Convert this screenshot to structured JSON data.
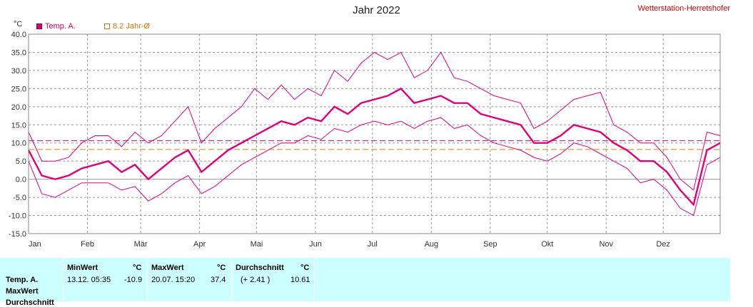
{
  "header": {
    "title": "Jahr 2022",
    "station": "Wetterstation-Herretshofer",
    "unit": "°C"
  },
  "legend": [
    {
      "label": "Temp. A.",
      "color": "#d4006e"
    },
    {
      "label": "8.2 Jahr-Ø",
      "color": "#cc7700"
    }
  ],
  "chart_data": {
    "type": "line",
    "title": "Jahr 2022",
    "ylabel": "°C",
    "ylim": [
      -15,
      40
    ],
    "yticks": [
      "40.0",
      "35.0",
      "30.0",
      "25.0",
      "20.0",
      "15.0",
      "10.0",
      "5.0",
      "0.0",
      "-5.0",
      "-10.0",
      "-15.0"
    ],
    "months": [
      "Jan",
      "Feb",
      "Mär",
      "Apr",
      "Mai",
      "Jun",
      "Jul",
      "Aug",
      "Sep",
      "Okt",
      "Nov",
      "Dez"
    ],
    "grid": true,
    "reference_lines": [
      {
        "name": "8.2 Jahr-Ø",
        "value": 8.2,
        "color": "#e08000",
        "style": "dashed"
      },
      {
        "name": "Durchschnitt",
        "value": 10.61,
        "color": "#d4006e",
        "style": "dashed"
      }
    ],
    "series": [
      {
        "name": "Temp. A.",
        "color": "#e0007a",
        "x_unit": "day of year (1 = 1. Jan)",
        "x": [
          1,
          8,
          15,
          22,
          29,
          36,
          43,
          50,
          57,
          64,
          71,
          78,
          85,
          92,
          99,
          106,
          113,
          120,
          127,
          134,
          141,
          148,
          155,
          162,
          169,
          176,
          183,
          190,
          197,
          204,
          211,
          218,
          225,
          232,
          239,
          246,
          253,
          260,
          267,
          274,
          281,
          288,
          295,
          302,
          309,
          316,
          323,
          330,
          337,
          344,
          351,
          358,
          365
        ],
        "mean": [
          8,
          1,
          0,
          1,
          3,
          4,
          5,
          2,
          4,
          0,
          3,
          6,
          8,
          2,
          5,
          8,
          10,
          12,
          14,
          16,
          15,
          17,
          16,
          20,
          18,
          21,
          22,
          23,
          25,
          21,
          22,
          23,
          21,
          21,
          18,
          17,
          16,
          15,
          10,
          10,
          12,
          15,
          14,
          13,
          10,
          8,
          5,
          5,
          2,
          -3,
          -7,
          8,
          10
        ],
        "max": [
          13,
          5,
          5,
          6,
          10,
          12,
          12,
          9,
          13,
          10,
          12,
          16,
          20,
          10,
          14,
          17,
          20,
          25,
          22,
          26,
          22,
          25,
          23,
          30,
          27,
          32,
          35,
          33,
          35,
          28,
          30,
          35,
          28,
          27,
          25,
          23,
          22,
          21,
          14,
          16,
          19,
          22,
          23,
          24,
          15,
          13,
          10,
          10,
          6,
          0,
          -3,
          13,
          12
        ],
        "min": [
          5,
          -4,
          -5,
          -3,
          -1,
          -1,
          -1,
          -3,
          -2,
          -6,
          -4,
          -1,
          1,
          -4,
          -2,
          1,
          4,
          6,
          8,
          10,
          10,
          12,
          11,
          14,
          13,
          15,
          16,
          15,
          16,
          14,
          16,
          17,
          14,
          15,
          12,
          10,
          9,
          8,
          6,
          5,
          7,
          10,
          9,
          7,
          5,
          3,
          -1,
          0,
          -3,
          -8,
          -10,
          4,
          6
        ]
      }
    ]
  },
  "stats_table": {
    "columns": [
      {
        "title": "MinWert",
        "unit": "°C"
      },
      {
        "title": "MaxWert",
        "unit": "°C"
      },
      {
        "title": "Durchschnitt",
        "unit": "°C"
      }
    ],
    "row_labels": [
      "Temp. A.",
      "MaxWert",
      "Durchschnitt"
    ],
    "row": {
      "min_time": "13.12.  05:35",
      "min_value": "-10.9",
      "max_time": "20.07.  15:20",
      "max_value": "37.4",
      "avg_diff": "(+ 2.41 )",
      "avg_value": "10.61"
    }
  }
}
